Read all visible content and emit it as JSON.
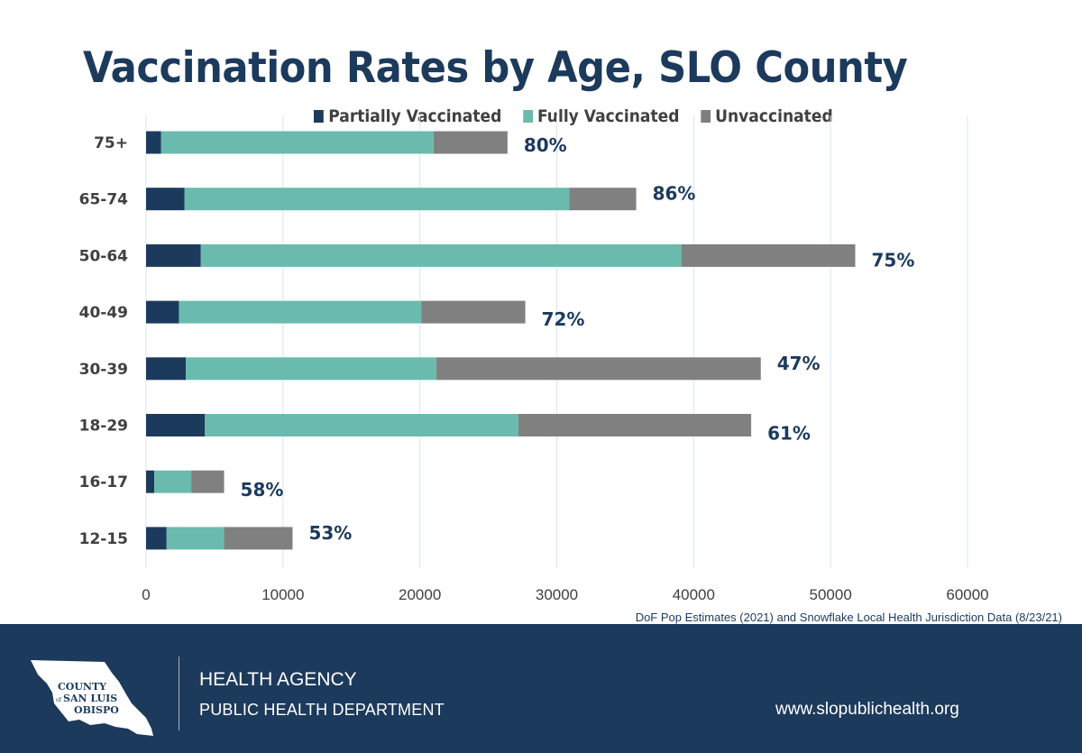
{
  "header": {
    "title": "Vaccination Rates by Age, SLO County"
  },
  "colors": {
    "partial": "#1c3a5c",
    "full": "#6abbad",
    "unvaccinated": "#808080",
    "grid": "#d6e6f5",
    "label": "#1c3a5c",
    "footer_bg": "#1c3a5c"
  },
  "chart_data": {
    "type": "bar",
    "orientation": "horizontal",
    "stacked": true,
    "title": "Vaccination Rates by Age, SLO County",
    "xlabel": "",
    "ylabel": "",
    "xlim": [
      0,
      60000
    ],
    "xticks": [
      "0",
      "10000",
      "20000",
      "30000",
      "40000",
      "50000",
      "60000"
    ],
    "grid": true,
    "legend_position": "top",
    "categories": [
      "75+",
      "65-74",
      "50-64",
      "40-49",
      "30-39",
      "18-29",
      "16-17",
      "12-15"
    ],
    "series": [
      {
        "name": "Partially Vaccinated",
        "values": [
          1100,
          2800,
          4000,
          2400,
          2900,
          4300,
          600,
          1500
        ]
      },
      {
        "name": "Fully Vaccinated",
        "values": [
          19900,
          28100,
          35100,
          17700,
          18300,
          22900,
          2700,
          4200
        ]
      },
      {
        "name": "Unvaccinated",
        "values": [
          5400,
          4900,
          12700,
          7600,
          23700,
          17000,
          2400,
          5000
        ]
      }
    ],
    "data_labels": [
      "80%",
      "86%",
      "75%",
      "72%",
      "47%",
      "61%",
      "58%",
      "53%"
    ]
  },
  "source": "DoF Pop Estimates (2021) and Snowflake Local Health Jurisdiction Data (8/23/21)",
  "footer": {
    "logo_line1": "COUNTY",
    "logo_of": "of",
    "logo_line2": "SAN LUIS",
    "logo_line3": "OBISPO",
    "agency": "HEALTH AGENCY",
    "department": "PUBLIC HEALTH DEPARTMENT",
    "url": "www.slopublichealth.org"
  }
}
